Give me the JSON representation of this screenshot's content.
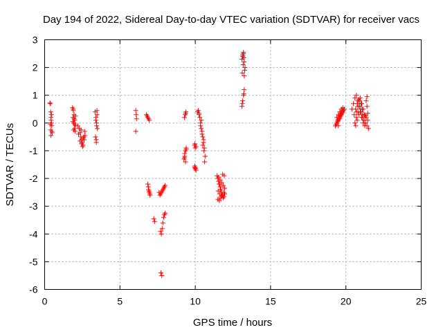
{
  "chart_data": {
    "type": "scatter",
    "title": "Day 194 of 2022, Sidereal Day-to-day VTEC variation (SDTVAR) for receiver vacs",
    "xlabel": "GPS time / hours",
    "ylabel": "SDTVAR / TECUs",
    "xlim": [
      0,
      25
    ],
    "ylim": [
      -6,
      3
    ],
    "xticks": [
      0,
      5,
      10,
      15,
      20,
      25
    ],
    "yticks": [
      -6,
      -5,
      -4,
      -3,
      -2,
      -1,
      0,
      1,
      2,
      3
    ],
    "xtick_labels": [
      "0",
      "5",
      "10",
      "15",
      "20",
      "25"
    ],
    "ytick_labels": [
      "-6",
      "-5",
      "-4",
      "-3",
      "-2",
      "-1",
      "0",
      "1",
      "2",
      "3"
    ],
    "grid": true,
    "marker": "+",
    "color": "#ff0000",
    "series": [
      {
        "name": "SDTVAR",
        "x": [
          0.35,
          0.38,
          0.4,
          0.42,
          0.45,
          0.47,
          0.5,
          0.4,
          0.42,
          0.45,
          0.38,
          0.43,
          0.48,
          1.85,
          1.9,
          1.95,
          2.0,
          2.05,
          1.88,
          1.93,
          1.98,
          2.03,
          1.9,
          1.95,
          2.0,
          2.05,
          1.87,
          1.92,
          2.2,
          2.3,
          2.35,
          2.4,
          2.45,
          2.5,
          2.55,
          2.6,
          2.65,
          2.25,
          2.35,
          2.45,
          2.55,
          2.62,
          2.68,
          2.42,
          2.52,
          3.35,
          3.4,
          3.45,
          3.5,
          3.38,
          3.43,
          3.48,
          3.4,
          3.45,
          3.42,
          3.47,
          6.05,
          6.08,
          6.1,
          6.05,
          6.75,
          6.8,
          6.85,
          6.9,
          6.95,
          6.85,
          6.9,
          6.95,
          7.0,
          6.88,
          6.93,
          6.98,
          7.25,
          7.3,
          7.6,
          7.65,
          7.7,
          7.75,
          7.8,
          7.85,
          7.9,
          7.95,
          8.0,
          7.7,
          7.75,
          7.8,
          7.85,
          7.9,
          7.95,
          8.0,
          7.72,
          7.78,
          9.25,
          9.3,
          9.35,
          9.4,
          9.28,
          9.33,
          9.38,
          9.3,
          9.35,
          9.4,
          9.28,
          9.36,
          9.95,
          10.0,
          10.05,
          9.97,
          10.02,
          9.95,
          10.0,
          10.05,
          9.98,
          10.15,
          10.2,
          10.25,
          10.3,
          10.35,
          10.4,
          10.45,
          10.5,
          10.55,
          10.6,
          10.65,
          10.25,
          10.35,
          10.45,
          10.55,
          10.62,
          10.4,
          10.5,
          10.58,
          11.45,
          11.5,
          11.55,
          11.6,
          11.65,
          11.7,
          11.75,
          11.8,
          11.85,
          11.9,
          11.95,
          11.5,
          11.6,
          11.7,
          11.8,
          11.9,
          11.55,
          11.65,
          11.75,
          11.85,
          11.95,
          11.52,
          11.62,
          11.72,
          11.82,
          11.92,
          11.58,
          11.68,
          11.78,
          13.1,
          13.15,
          13.2,
          13.25,
          13.3,
          13.12,
          13.18,
          13.22,
          13.28,
          13.15,
          13.2,
          13.25,
          13.1,
          13.15,
          13.2,
          13.25,
          13.12,
          13.22,
          19.3,
          19.4,
          19.5,
          19.6,
          19.7,
          19.8,
          19.9,
          19.35,
          19.45,
          19.55,
          19.65,
          19.75,
          19.85,
          19.4,
          19.5,
          19.6,
          19.7,
          19.8,
          19.45,
          19.55,
          19.65,
          19.75,
          19.5,
          19.6,
          19.7,
          20.4,
          20.5,
          20.6,
          20.7,
          20.8,
          20.9,
          21.0,
          21.1,
          21.2,
          21.3,
          21.4,
          21.5,
          20.55,
          20.65,
          20.75,
          20.85,
          20.95,
          21.05,
          21.15,
          21.25,
          21.35,
          21.45,
          20.6,
          20.7,
          20.8,
          20.9,
          21.0,
          21.1,
          21.2,
          21.3,
          21.4,
          20.65,
          20.75,
          20.85,
          20.95,
          21.05,
          21.15,
          21.25,
          21.35,
          20.7,
          20.8,
          20.9,
          21.0,
          21.1,
          21.2,
          21.3,
          21.4,
          21.45
        ],
        "y": [
          0.72,
          0.7,
          0.4,
          0.2,
          0.0,
          -0.1,
          -0.35,
          -0.25,
          -0.45,
          0.3,
          -0.05,
          0.1,
          -0.3,
          0.55,
          0.45,
          0.3,
          0.1,
          -0.1,
          0.2,
          0.0,
          -0.2,
          -0.3,
          0.5,
          0.15,
          -0.05,
          0.25,
          0.05,
          -0.25,
          -0.1,
          -0.2,
          -0.35,
          -0.5,
          -0.6,
          -0.7,
          -0.8,
          -0.5,
          -0.3,
          -0.4,
          -0.65,
          -0.75,
          -0.55,
          -0.6,
          -0.45,
          -0.25,
          -0.85,
          0.4,
          0.2,
          0.0,
          -0.2,
          -0.5,
          -0.7,
          0.3,
          0.1,
          -0.1,
          -0.6,
          0.45,
          0.45,
          0.3,
          0.15,
          -0.3,
          0.3,
          0.25,
          0.2,
          0.15,
          0.1,
          -2.2,
          -2.4,
          -2.5,
          -2.6,
          -2.3,
          -2.45,
          -2.55,
          -3.45,
          -3.55,
          -2.5,
          -2.6,
          -2.55,
          -2.5,
          -2.45,
          -2.4,
          -2.35,
          -2.3,
          -2.25,
          -3.9,
          -4.0,
          -3.8,
          -3.6,
          -3.4,
          -3.3,
          -3.25,
          -5.4,
          -5.5,
          -1.3,
          -1.2,
          -1.0,
          -0.9,
          0.2,
          0.3,
          0.4,
          -1.1,
          -1.4,
          -0.95,
          -1.25,
          0.35,
          -1.6,
          -1.65,
          -1.7,
          -1.55,
          -1.62,
          -0.8,
          -0.9,
          -0.85,
          -0.75,
          0.4,
          0.45,
          0.35,
          0.2,
          0.0,
          -0.2,
          -0.3,
          -0.5,
          -0.7,
          -0.9,
          -1.2,
          0.3,
          -0.1,
          -0.4,
          -0.6,
          -1.4,
          0.1,
          -0.8,
          -1.0,
          -1.9,
          -2.0,
          -2.1,
          -2.2,
          -2.3,
          -2.4,
          -2.5,
          -2.6,
          -2.7,
          -2.65,
          -2.55,
          -2.75,
          -2.8,
          -2.7,
          -2.6,
          -2.5,
          -1.95,
          -2.05,
          -2.15,
          -2.25,
          -2.35,
          -2.45,
          -2.55,
          -2.65,
          -1.85,
          -1.9,
          -2.2,
          -2.4,
          -2.6,
          2.3,
          2.4,
          2.5,
          2.2,
          2.0,
          1.8,
          2.1,
          2.35,
          1.9,
          2.45,
          2.55,
          1.7,
          0.6,
          0.8,
          1.0,
          1.2,
          0.7,
          1.05,
          -0.1,
          0.0,
          0.1,
          0.2,
          0.3,
          0.4,
          0.5,
          -0.05,
          0.05,
          0.15,
          0.25,
          0.35,
          0.45,
          0.2,
          0.3,
          0.4,
          0.5,
          0.55,
          0.1,
          0.25,
          0.35,
          0.45,
          -0.1,
          0.15,
          0.3,
          0.5,
          0.7,
          0.9,
          1.0,
          0.8,
          0.6,
          0.4,
          0.2,
          0.1,
          0.0,
          -0.1,
          -0.2,
          0.3,
          0.5,
          0.7,
          0.85,
          0.9,
          0.7,
          0.5,
          0.3,
          0.2,
          0.1,
          0.0,
          0.2,
          0.4,
          0.6,
          0.5,
          0.3,
          0.1,
          0.0,
          0.6,
          -0.1,
          0.1,
          0.3,
          0.4,
          0.2,
          0.0,
          -0.1,
          0.8,
          0.4,
          0.6,
          0.8,
          0.7,
          0.5,
          0.3,
          0.25,
          0.95,
          0.35
        ]
      }
    ]
  }
}
